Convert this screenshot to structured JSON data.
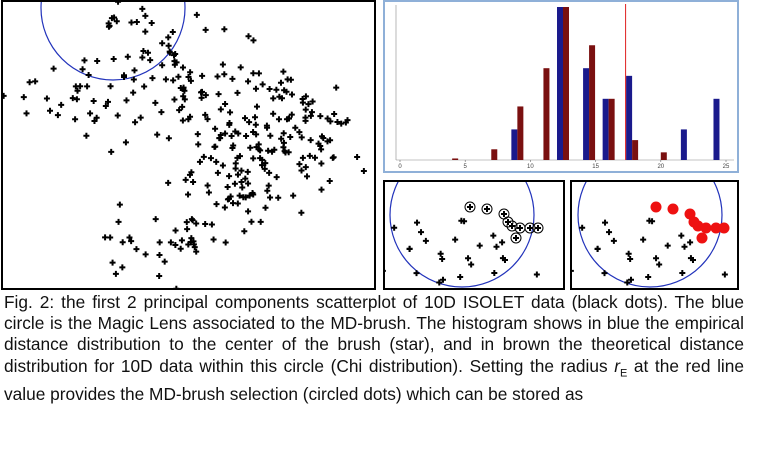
{
  "figure": {
    "histogram": {
      "type": "bar",
      "x": [
        4,
        7,
        9,
        11,
        12.5,
        14.5,
        16,
        17.8,
        20,
        22,
        24.5
      ],
      "series": [
        {
          "color": "#1a1a8c",
          "values": [
            null,
            null,
            0.2,
            null,
            1.0,
            0.6,
            0.4,
            0.55,
            null,
            0.2,
            0.4
          ]
        },
        {
          "color": "#7a1010",
          "values": [
            0.01,
            0.07,
            0.35,
            0.6,
            1.0,
            0.75,
            0.4,
            0.13,
            0.05,
            null,
            null
          ]
        }
      ],
      "xlim": [
        0,
        25
      ],
      "ylim": [
        0,
        1
      ],
      "xticks": [
        0,
        5,
        10,
        15,
        20,
        25
      ],
      "threshold": 17.3,
      "threshold_color": "#e02020"
    }
  },
  "caption": {
    "text_before": "Fig. 2: the first 2 principal components scatterplot of 10D ISOLET data (black dots). The blue circle is the Magic Lens associated to the MD-brush. The histogram shows in blue the empirical distance distribution to the center of the brush (star), and in brown the theoretical distance distribution for 10D data within this circle (Chi distribution). Setting the radius ",
    "symbol": "r",
    "subscript": "E",
    "text_after": " at the red line value provides the MD-brush selection (circled dots) which can be stored as"
  }
}
